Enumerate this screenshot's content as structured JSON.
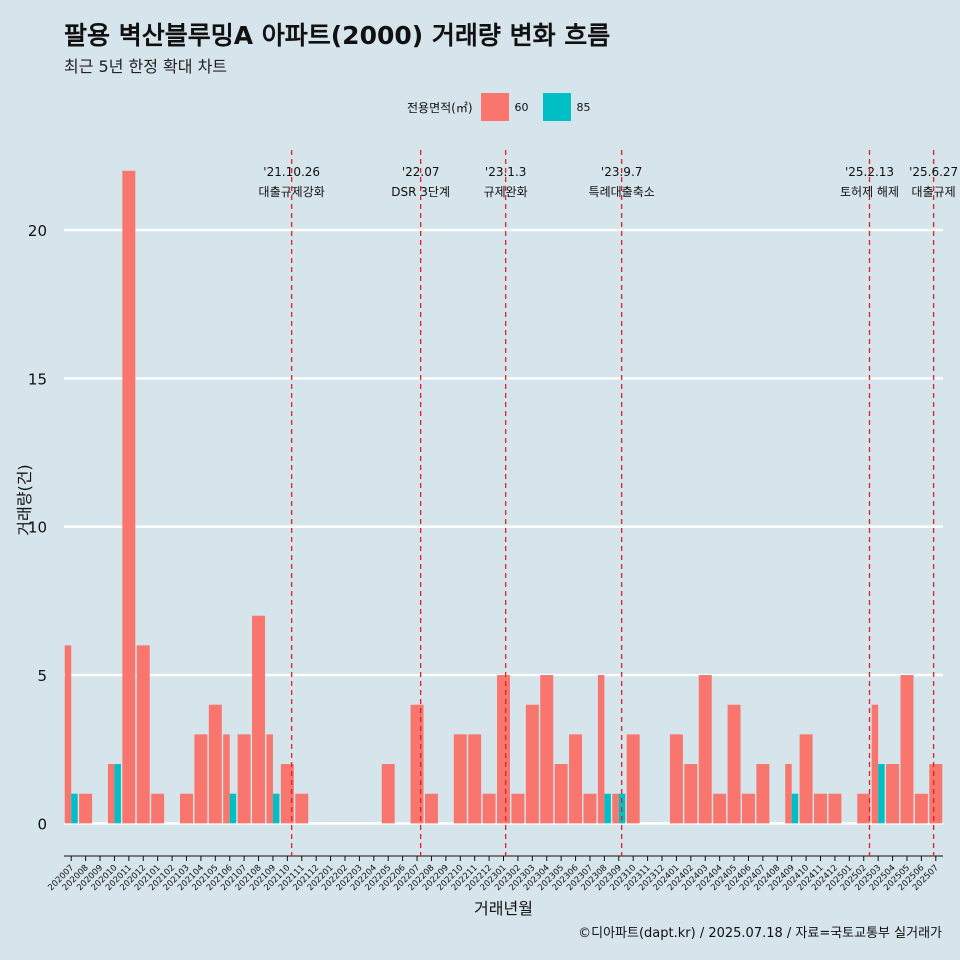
{
  "chart_data": {
    "type": "bar",
    "title": "팔용 벽산블루밍A 아파트(2000) 거래량 변화 흐름",
    "subtitle": "최근 5년 한정 확대 차트",
    "xlabel": "거래년월",
    "ylabel": "거래량(건)",
    "caption": "©디아파트(dapt.kr) / 2025.07.18 / 자료=국토교통부 실거래가",
    "legend_title": "전용면적(㎡)",
    "legend_position": "top",
    "grid": true,
    "ylim": [
      -1.1,
      22.7
    ],
    "yticks": [
      0,
      5,
      10,
      15,
      20
    ],
    "colors": {
      "60": "#f8766d",
      "85": "#00bfc4",
      "background": "#d6e4ec",
      "grid": "#ffffff",
      "event_line": "#e8211f"
    },
    "categories": [
      "202007",
      "202008",
      "202009",
      "202010",
      "202011",
      "202012",
      "202101",
      "202102",
      "202103",
      "202104",
      "202105",
      "202106",
      "202107",
      "202108",
      "202109",
      "202110",
      "202111",
      "202112",
      "202201",
      "202202",
      "202203",
      "202204",
      "202205",
      "202206",
      "202207",
      "202208",
      "202209",
      "202210",
      "202211",
      "202212",
      "202301",
      "202302",
      "202303",
      "202304",
      "202305",
      "202306",
      "202307",
      "202308",
      "202309",
      "202310",
      "202311",
      "202312",
      "202401",
      "202402",
      "202403",
      "202404",
      "202405",
      "202406",
      "202407",
      "202408",
      "202409",
      "202410",
      "202411",
      "202412",
      "202501",
      "202502",
      "202503",
      "202504",
      "202505",
      "202506",
      "202507"
    ],
    "series": [
      {
        "name": "60",
        "values": [
          6,
          1,
          0,
          2,
          22,
          6,
          1,
          0,
          1,
          3,
          4,
          3,
          3,
          7,
          3,
          2,
          1,
          0,
          0,
          0,
          0,
          0,
          2,
          0,
          4,
          1,
          0,
          3,
          3,
          1,
          5,
          1,
          4,
          5,
          2,
          3,
          1,
          5,
          1,
          3,
          0,
          0,
          3,
          2,
          5,
          1,
          4,
          1,
          2,
          0,
          2,
          3,
          1,
          1,
          0,
          1,
          4,
          2,
          5,
          1,
          2
        ]
      },
      {
        "name": "85",
        "values": [
          1,
          0,
          0,
          2,
          0,
          0,
          0,
          0,
          0,
          0,
          0,
          1,
          0,
          0,
          1,
          0,
          0,
          0,
          0,
          0,
          0,
          0,
          0,
          0,
          0,
          0,
          0,
          0,
          0,
          0,
          0,
          0,
          0,
          0,
          0,
          0,
          0,
          1,
          1,
          0,
          0,
          0,
          0,
          0,
          0,
          0,
          0,
          0,
          0,
          0,
          1,
          0,
          0,
          0,
          0,
          0,
          2,
          0,
          0,
          0,
          0
        ]
      }
    ],
    "annotations": [
      {
        "date": "'21.10.26",
        "label": "대출규제강화",
        "x": 15.3
      },
      {
        "date": "'22.07",
        "label": "DSR 3단계",
        "x": 24.25
      },
      {
        "date": "'23.1.3",
        "label": "규제완화",
        "x": 30.15
      },
      {
        "date": "'23.9.7",
        "label": "특례대출축소",
        "x": 38.2
      },
      {
        "date": "'25.2.13",
        "label": "토허제 해제",
        "x": 55.4
      },
      {
        "date": "'25.6.27",
        "label": "대출규제",
        "x": 59.85
      }
    ]
  }
}
